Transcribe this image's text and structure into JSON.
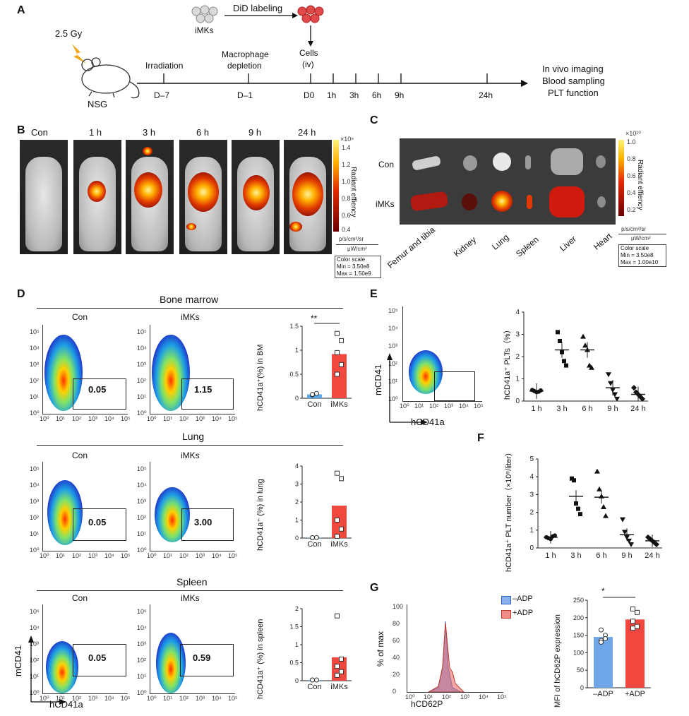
{
  "panels": {
    "A": "A",
    "B": "B",
    "C": "C",
    "D": "D",
    "E": "E",
    "F": "F",
    "G": "G"
  },
  "panelA": {
    "dose": "2.5 Gy",
    "mouse": "NSG",
    "cells_label": "iMKs",
    "labeling": "DiD labeling",
    "injection": "Cells",
    "injection_sub": "(iv)",
    "irradiation": "Irradiation",
    "macrophage": "Macrophage",
    "depletion": "depletion",
    "timepoints": [
      "D–7",
      "D–1",
      "D0",
      "1h",
      "3h",
      "6h",
      "9h",
      "24h"
    ],
    "outcomes": [
      "In vivo imaging",
      "Blood sampling",
      "PLT function"
    ]
  },
  "panelB": {
    "labels": [
      "Con",
      "1 h",
      "3 h",
      "6 h",
      "9 h",
      "24 h"
    ],
    "colorbar_exp": "×10⁹",
    "colorbar_ticks": [
      "1.4",
      "1.2",
      "1.0",
      "0.8",
      "0.6",
      "0.4"
    ],
    "colorbar_label": "Radiant effiency",
    "units": [
      "p/s/cm²/sr",
      "μW/cm²"
    ],
    "color_scale": [
      "Color scale",
      "Min = 3.50e8",
      "Max = 1.50e9"
    ]
  },
  "panelC": {
    "rows": [
      "Con",
      "iMKs"
    ],
    "organs": [
      "Femur and tibia",
      "Kidney",
      "Lung",
      "Spleen",
      "Liver",
      "Heart"
    ],
    "colorbar_exp": "×10¹⁰",
    "colorbar_ticks": [
      "1.0",
      "0.8",
      "0.6",
      "0.4",
      "0.2"
    ],
    "colorbar_label": "Radiant effiency",
    "units": [
      "p/s/cm²/sr",
      "μW/cm²"
    ],
    "color_scale": [
      "Color scale",
      "Min = 3.50e8",
      "Max = 1.00e10"
    ]
  },
  "panelD": {
    "sections": [
      "Bone marrow",
      "Lung",
      "Spleen"
    ],
    "groups": [
      "Con",
      "iMKs"
    ],
    "gate_values": [
      [
        "0.05",
        "1.15"
      ],
      [
        "0.05",
        "3.00"
      ],
      [
        "0.05",
        "0.59"
      ]
    ],
    "flow_ticks": [
      "10⁰",
      "10¹",
      "10²",
      "10³",
      "10⁴",
      "10⁵"
    ],
    "xlabel": "hCD41a",
    "ylabel": "mCD41",
    "bar_ylabels": [
      "hCD41a⁺(%) in BM",
      "hCD41a⁺ (%) in lung",
      "hCD41a⁺ (%) in spleen"
    ],
    "bar_yticks": [
      [
        "0",
        "0.5",
        "1",
        "1.5"
      ],
      [
        "0",
        "1",
        "2",
        "3",
        "4"
      ],
      [
        "0",
        "0.5",
        "1",
        "1.5",
        "2"
      ]
    ],
    "sig": "**"
  },
  "panelE": {
    "xlabel": "hCD41a",
    "ylabel": "mCD41",
    "dot_ylabel": "hCD41a⁺ PLTs（%）",
    "dot_yticks": [
      "0",
      "1",
      "2",
      "3",
      "4"
    ],
    "dot_xticks": [
      "1 h",
      "3 h",
      "6 h",
      "9 h",
      "24 h"
    ]
  },
  "panelF": {
    "ylabel": "hCD41a⁺ PLT number（×10⁹/liter）",
    "yticks": [
      "0",
      "1",
      "2",
      "3",
      "4",
      "5"
    ],
    "xticks": [
      "1 h",
      "3 h",
      "6 h",
      "9 h",
      "24 h"
    ]
  },
  "panelG": {
    "legend": [
      "–ADP",
      "+ADP"
    ],
    "hist_ylabel": "% of max",
    "hist_yticks": [
      "0",
      "20",
      "40",
      "60",
      "80",
      "100"
    ],
    "hist_xlabel": "hCD62P",
    "bar_ylabel": "MFI of hCD62P expression",
    "bar_yticks": [
      "0",
      "50",
      "100",
      "150",
      "200",
      "250"
    ],
    "bar_xticks": [
      "–ADP",
      "+ADP"
    ],
    "sig": "*"
  },
  "chart_data": [
    {
      "type": "bar",
      "categories": [
        "Con",
        "iMKs"
      ],
      "values": [
        0.08,
        0.92
      ],
      "ylabel": "hCD41a⁺(%) in BM",
      "ylim": [
        0,
        1.5
      ]
    },
    {
      "type": "bar",
      "categories": [
        "Con",
        "iMKs"
      ],
      "values": [
        0.03,
        1.8
      ],
      "ylabel": "hCD41a⁺ (%) in lung",
      "ylim": [
        0,
        4
      ]
    },
    {
      "type": "bar",
      "categories": [
        "Con",
        "iMKs"
      ],
      "values": [
        0.02,
        0.65
      ],
      "ylabel": "hCD41a⁺ (%) in spleen",
      "ylim": [
        0,
        2
      ]
    },
    {
      "type": "scatter",
      "categories": [
        "1 h",
        "3 h",
        "6 h",
        "9 h",
        "24 h"
      ],
      "values": [
        0.45,
        2.3,
        2.3,
        0.6,
        0.3
      ],
      "ylabel": "hCD41a⁺ PLTs（%）",
      "ylim": [
        0,
        4
      ]
    },
    {
      "type": "scatter",
      "categories": [
        "1 h",
        "3 h",
        "6 h",
        "9 h",
        "24 h"
      ],
      "values": [
        0.6,
        2.9,
        2.85,
        0.75,
        0.4
      ],
      "ylabel": "hCD41a⁺ PLT number（×10⁹/liter）",
      "ylim": [
        0,
        5
      ]
    },
    {
      "type": "bar",
      "categories": [
        "–ADP",
        "+ADP"
      ],
      "values": [
        145,
        195
      ],
      "ylabel": "MFI of hCD62P expression",
      "ylim": [
        0,
        250
      ]
    }
  ],
  "colors": {
    "con": "#5aa7ea",
    "imks": "#f0473f",
    "minus_adp": "#6fa6e8",
    "plus_adp": "#ee7b77"
  }
}
